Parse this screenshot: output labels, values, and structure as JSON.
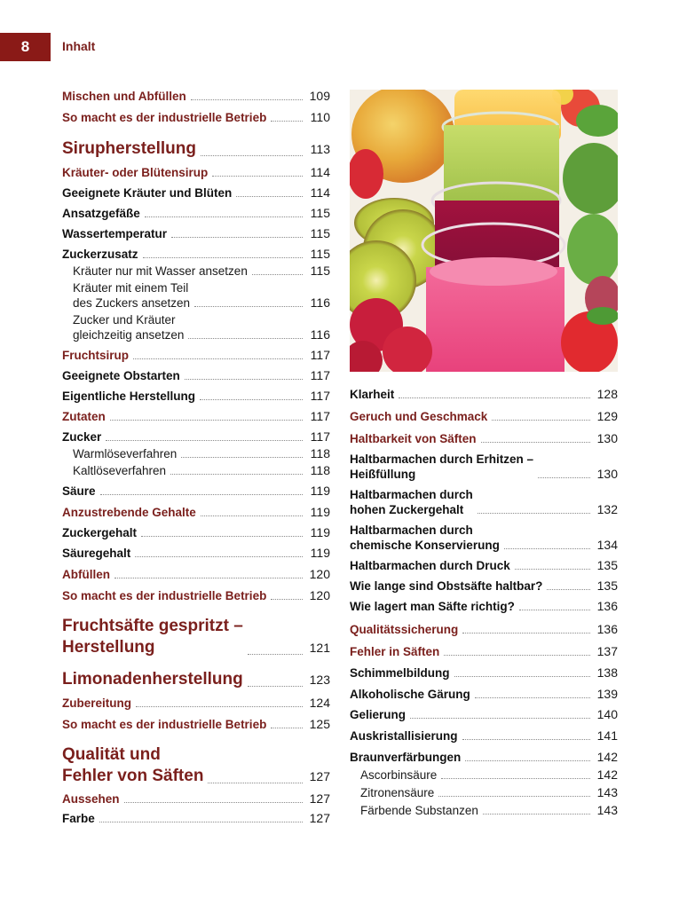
{
  "header": {
    "page_number": "8",
    "section_title": "Inhalt"
  },
  "colors": {
    "accent": "#8a1a17",
    "heading": "#7a1f1c",
    "text": "#1a1a1a"
  },
  "image": {
    "description": "Gläser mit Fruchtsäften (gelb, grün, violett, pink) umgeben von Erdbeeren, Kiwischeiben, Himbeeren, Minze und einem Apfel"
  },
  "toc_left": [
    {
      "label": "Mischen und Abfüllen",
      "page": "109",
      "level": "section",
      "gap": 0
    },
    {
      "label": "So macht es der industrielle Betrieb",
      "page": "110",
      "level": "section",
      "gap": 7
    },
    {
      "label": "Sirupherstellung",
      "page": "113",
      "level": "chapter",
      "gap": 15
    },
    {
      "label": "Kräuter- oder Blütensirup",
      "page": "114",
      "level": "section",
      "gap": 6
    },
    {
      "label": "Geeignete Kräuter und Blüten",
      "page": "114",
      "level": "entry",
      "gap": 6
    },
    {
      "label": "Ansatzgefäße",
      "page": "115",
      "level": "entry",
      "gap": 6
    },
    {
      "label": "Wassertemperatur",
      "page": "115",
      "level": "entry",
      "gap": 6
    },
    {
      "label": "Zuckerzusatz",
      "page": "115",
      "level": "entry",
      "gap": 6
    },
    {
      "label": "Kräuter nur mit Wasser ansetzen",
      "page": "115",
      "level": "sub",
      "gap": 2
    },
    {
      "label": "Kräuter mit einem Teil\ndes Zuckers ansetzen",
      "page": "116",
      "level": "sub",
      "gap": 2
    },
    {
      "label": "Zucker und Kräuter\ngleichzeitig ansetzen",
      "page": "116",
      "level": "sub",
      "gap": 2
    },
    {
      "label": "Fruchtsirup",
      "page": "117",
      "level": "section",
      "gap": 6
    },
    {
      "label": "Geeignete Obstarten",
      "page": "117",
      "level": "entry",
      "gap": 6
    },
    {
      "label": "Eigentliche Herstellung",
      "page": "117",
      "level": "entry",
      "gap": 6
    },
    {
      "label": "Zutaten",
      "page": "117",
      "level": "section",
      "gap": 6
    },
    {
      "label": "Zucker",
      "page": "117",
      "level": "entry",
      "gap": 6
    },
    {
      "label": "Warmlöseverfahren",
      "page": "118",
      "level": "sub",
      "gap": 2
    },
    {
      "label": "Kaltlöseverfahren",
      "page": "118",
      "level": "sub",
      "gap": 2
    },
    {
      "label": "Säure",
      "page": "119",
      "level": "entry",
      "gap": 6
    },
    {
      "label": "Anzustrebende Gehalte",
      "page": "119",
      "level": "section",
      "gap": 7
    },
    {
      "label": "Zuckergehalt",
      "page": "119",
      "level": "entry",
      "gap": 6
    },
    {
      "label": "Säuregehalt",
      "page": "119",
      "level": "entry",
      "gap": 6
    },
    {
      "label": "Abfüllen",
      "page": "120",
      "level": "section",
      "gap": 7
    },
    {
      "label": "So macht es der industrielle Betrieb",
      "page": "120",
      "level": "section",
      "gap": 7
    },
    {
      "label": "Fruchtsäfte gespritzt –\nHerstellung",
      "page": "121",
      "level": "chapter",
      "gap": 14
    },
    {
      "label": "Limonadenherstellung",
      "page": "123",
      "level": "chapter",
      "gap": 12
    },
    {
      "label": "Zubereitung",
      "page": "124",
      "level": "section",
      "gap": 6
    },
    {
      "label": "So macht es der industrielle Betrieb",
      "page": "125",
      "level": "section",
      "gap": 7
    },
    {
      "label": "Qualität und\nFehler von Säften",
      "page": "127",
      "level": "chapter",
      "gap": 14
    },
    {
      "label": "Aussehen",
      "page": "127",
      "level": "section",
      "gap": 5
    },
    {
      "label": "Farbe",
      "page": "127",
      "level": "entry",
      "gap": 5
    }
  ],
  "toc_right": [
    {
      "label": "Klarheit",
      "page": "128",
      "level": "entry",
      "gap": 0
    },
    {
      "label": "Geruch und Geschmack",
      "page": "129",
      "level": "section",
      "gap": 8
    },
    {
      "label": "Haltbarkeit von Säften",
      "page": "130",
      "level": "section",
      "gap": 8
    },
    {
      "label": "Haltbarmachen durch Erhitzen –\nHeißfüllung",
      "page": "130",
      "level": "entry",
      "gap": 6
    },
    {
      "label": "Haltbarmachen durch\nhohen Zuckergehalt",
      "page": "132",
      "level": "entry",
      "gap": 6
    },
    {
      "label": "Haltbarmachen durch\nchemische Konservierung",
      "page": "134",
      "level": "entry",
      "gap": 6
    },
    {
      "label": "Haltbarmachen durch Druck",
      "page": "135",
      "level": "entry",
      "gap": 6
    },
    {
      "label": "Wie lange sind Obstsäfte haltbar?",
      "page": "135",
      "level": "entry",
      "gap": 6
    },
    {
      "label": "Wie lagert man Säfte richtig?",
      "page": "136",
      "level": "entry",
      "gap": 6
    },
    {
      "label": "Qualitätssicherung",
      "page": "136",
      "level": "section",
      "gap": 9
    },
    {
      "label": "Fehler in Säften",
      "page": "137",
      "level": "section",
      "gap": 8
    },
    {
      "label": "Schimmelbildung",
      "page": "138",
      "level": "entry",
      "gap": 7
    },
    {
      "label": "Alkoholische Gärung",
      "page": "139",
      "level": "entry",
      "gap": 7
    },
    {
      "label": "Gelierung",
      "page": "140",
      "level": "entry",
      "gap": 6
    },
    {
      "label": "Auskristallisierung",
      "page": "141",
      "level": "entry",
      "gap": 7
    },
    {
      "label": "Braunverfärbungen",
      "page": "142",
      "level": "entry",
      "gap": 7
    },
    {
      "label": "Ascorbinsäure",
      "page": "142",
      "level": "sub",
      "gap": 3
    },
    {
      "label": "Zitronensäure",
      "page": "143",
      "level": "sub",
      "gap": 3
    },
    {
      "label": "Färbende Substanzen",
      "page": "143",
      "level": "sub",
      "gap": 3
    }
  ]
}
